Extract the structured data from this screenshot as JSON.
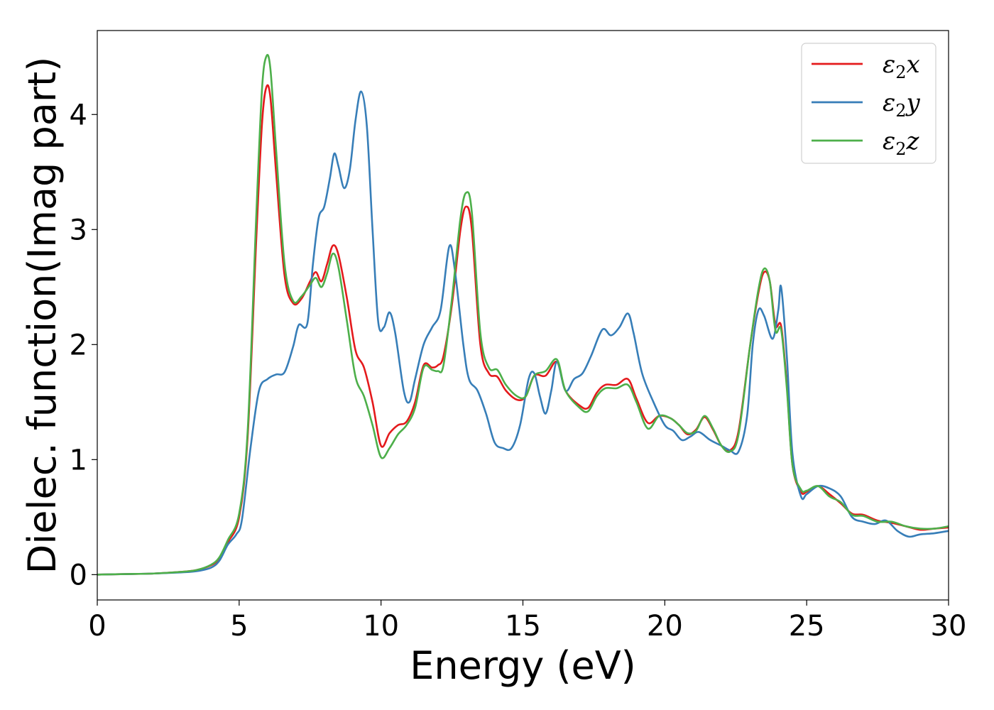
{
  "chart_data": {
    "type": "line",
    "xlabel": "Energy (eV)",
    "ylabel": "Dielec. function(Imag part)",
    "xlim": [
      0,
      30
    ],
    "ylim": [
      -0.22,
      4.73
    ],
    "xticks": [
      0,
      5,
      10,
      15,
      20,
      25,
      30
    ],
    "yticks": [
      0,
      1,
      2,
      3,
      4
    ],
    "grid": false,
    "legend_position": "top-right",
    "series": [
      {
        "name": "ε2x",
        "legend_base": "ε",
        "legend_sub": "2",
        "legend_var": "x",
        "color": "#e41a1c",
        "points": [
          [
            0,
            0
          ],
          [
            1,
            0.005
          ],
          [
            2,
            0.01
          ],
          [
            3,
            0.025
          ],
          [
            3.5,
            0.04
          ],
          [
            4,
            0.08
          ],
          [
            4.3,
            0.14
          ],
          [
            4.6,
            0.28
          ],
          [
            5,
            0.5
          ],
          [
            5.3,
            1.2
          ],
          [
            5.6,
            2.9
          ],
          [
            5.8,
            3.9
          ],
          [
            5.95,
            4.23
          ],
          [
            6.1,
            4.15
          ],
          [
            6.3,
            3.5
          ],
          [
            6.6,
            2.6
          ],
          [
            6.9,
            2.36
          ],
          [
            7.2,
            2.4
          ],
          [
            7.5,
            2.55
          ],
          [
            7.7,
            2.63
          ],
          [
            7.9,
            2.55
          ],
          [
            8.1,
            2.7
          ],
          [
            8.3,
            2.86
          ],
          [
            8.5,
            2.78
          ],
          [
            8.8,
            2.4
          ],
          [
            9.1,
            1.95
          ],
          [
            9.4,
            1.8
          ],
          [
            9.7,
            1.5
          ],
          [
            10.0,
            1.12
          ],
          [
            10.3,
            1.23
          ],
          [
            10.6,
            1.3
          ],
          [
            10.9,
            1.33
          ],
          [
            11.2,
            1.5
          ],
          [
            11.5,
            1.82
          ],
          [
            11.8,
            1.8
          ],
          [
            12.0,
            1.82
          ],
          [
            12.2,
            1.9
          ],
          [
            12.5,
            2.35
          ],
          [
            12.8,
            3.0
          ],
          [
            13.0,
            3.2
          ],
          [
            13.2,
            3.0
          ],
          [
            13.5,
            2.0
          ],
          [
            13.8,
            1.75
          ],
          [
            14.1,
            1.72
          ],
          [
            14.4,
            1.6
          ],
          [
            14.8,
            1.52
          ],
          [
            15.1,
            1.55
          ],
          [
            15.4,
            1.73
          ],
          [
            15.8,
            1.73
          ],
          [
            16.2,
            1.85
          ],
          [
            16.5,
            1.6
          ],
          [
            17.0,
            1.47
          ],
          [
            17.3,
            1.45
          ],
          [
            17.6,
            1.58
          ],
          [
            17.9,
            1.65
          ],
          [
            18.3,
            1.65
          ],
          [
            18.7,
            1.7
          ],
          [
            19.0,
            1.53
          ],
          [
            19.4,
            1.32
          ],
          [
            19.8,
            1.38
          ],
          [
            20.2,
            1.36
          ],
          [
            20.5,
            1.3
          ],
          [
            20.8,
            1.22
          ],
          [
            21.1,
            1.26
          ],
          [
            21.4,
            1.37
          ],
          [
            21.7,
            1.26
          ],
          [
            22.0,
            1.12
          ],
          [
            22.3,
            1.08
          ],
          [
            22.6,
            1.25
          ],
          [
            23.0,
            1.98
          ],
          [
            23.3,
            2.45
          ],
          [
            23.5,
            2.63
          ],
          [
            23.7,
            2.55
          ],
          [
            23.9,
            2.17
          ],
          [
            24.1,
            2.16
          ],
          [
            24.3,
            1.65
          ],
          [
            24.5,
            0.95
          ],
          [
            24.8,
            0.72
          ],
          [
            25.0,
            0.72
          ],
          [
            25.4,
            0.77
          ],
          [
            25.8,
            0.7
          ],
          [
            26.2,
            0.62
          ],
          [
            26.6,
            0.53
          ],
          [
            27.0,
            0.52
          ],
          [
            27.5,
            0.47
          ],
          [
            28.0,
            0.45
          ],
          [
            28.5,
            0.42
          ],
          [
            29.0,
            0.39
          ],
          [
            29.5,
            0.4
          ],
          [
            30.0,
            0.41
          ]
        ]
      },
      {
        "name": "ε2y",
        "legend_base": "ε",
        "legend_sub": "2",
        "legend_var": "y",
        "color": "#377eb8",
        "points": [
          [
            0,
            0
          ],
          [
            1,
            0.005
          ],
          [
            2,
            0.01
          ],
          [
            3,
            0.02
          ],
          [
            3.5,
            0.03
          ],
          [
            4,
            0.06
          ],
          [
            4.3,
            0.12
          ],
          [
            4.6,
            0.26
          ],
          [
            4.9,
            0.35
          ],
          [
            5.1,
            0.48
          ],
          [
            5.4,
            1.1
          ],
          [
            5.7,
            1.6
          ],
          [
            6.0,
            1.7
          ],
          [
            6.3,
            1.74
          ],
          [
            6.6,
            1.76
          ],
          [
            6.9,
            1.98
          ],
          [
            7.1,
            2.17
          ],
          [
            7.4,
            2.18
          ],
          [
            7.6,
            2.7
          ],
          [
            7.8,
            3.1
          ],
          [
            8.0,
            3.2
          ],
          [
            8.2,
            3.45
          ],
          [
            8.35,
            3.66
          ],
          [
            8.5,
            3.55
          ],
          [
            8.7,
            3.36
          ],
          [
            8.9,
            3.52
          ],
          [
            9.1,
            3.95
          ],
          [
            9.3,
            4.2
          ],
          [
            9.5,
            3.9
          ],
          [
            9.7,
            3.0
          ],
          [
            9.9,
            2.2
          ],
          [
            10.1,
            2.15
          ],
          [
            10.3,
            2.28
          ],
          [
            10.5,
            2.1
          ],
          [
            10.8,
            1.6
          ],
          [
            11.0,
            1.5
          ],
          [
            11.2,
            1.7
          ],
          [
            11.5,
            2.0
          ],
          [
            11.8,
            2.15
          ],
          [
            12.1,
            2.3
          ],
          [
            12.4,
            2.85
          ],
          [
            12.6,
            2.65
          ],
          [
            12.9,
            2.0
          ],
          [
            13.1,
            1.7
          ],
          [
            13.4,
            1.6
          ],
          [
            13.7,
            1.4
          ],
          [
            14.0,
            1.15
          ],
          [
            14.3,
            1.1
          ],
          [
            14.6,
            1.1
          ],
          [
            14.9,
            1.3
          ],
          [
            15.2,
            1.7
          ],
          [
            15.4,
            1.75
          ],
          [
            15.6,
            1.55
          ],
          [
            15.8,
            1.4
          ],
          [
            16.0,
            1.6
          ],
          [
            16.2,
            1.85
          ],
          [
            16.5,
            1.6
          ],
          [
            16.8,
            1.7
          ],
          [
            17.1,
            1.75
          ],
          [
            17.4,
            1.9
          ],
          [
            17.8,
            2.13
          ],
          [
            18.1,
            2.08
          ],
          [
            18.4,
            2.15
          ],
          [
            18.7,
            2.27
          ],
          [
            18.9,
            2.1
          ],
          [
            19.2,
            1.75
          ],
          [
            19.6,
            1.5
          ],
          [
            20.0,
            1.3
          ],
          [
            20.3,
            1.25
          ],
          [
            20.6,
            1.17
          ],
          [
            20.9,
            1.2
          ],
          [
            21.2,
            1.24
          ],
          [
            21.6,
            1.17
          ],
          [
            22.0,
            1.12
          ],
          [
            22.3,
            1.08
          ],
          [
            22.6,
            1.07
          ],
          [
            22.9,
            1.38
          ],
          [
            23.1,
            2.0
          ],
          [
            23.3,
            2.3
          ],
          [
            23.5,
            2.25
          ],
          [
            23.8,
            2.05
          ],
          [
            24.0,
            2.3
          ],
          [
            24.1,
            2.5
          ],
          [
            24.3,
            1.9
          ],
          [
            24.5,
            1.05
          ],
          [
            24.8,
            0.68
          ],
          [
            25.0,
            0.7
          ],
          [
            25.4,
            0.77
          ],
          [
            25.8,
            0.75
          ],
          [
            26.2,
            0.68
          ],
          [
            26.6,
            0.5
          ],
          [
            27.0,
            0.46
          ],
          [
            27.4,
            0.44
          ],
          [
            27.8,
            0.47
          ],
          [
            28.2,
            0.38
          ],
          [
            28.6,
            0.33
          ],
          [
            29.0,
            0.35
          ],
          [
            29.5,
            0.36
          ],
          [
            30.0,
            0.38
          ]
        ]
      },
      {
        "name": "ε2z",
        "legend_base": "ε",
        "legend_sub": "2",
        "legend_var": "z",
        "color": "#4daf4a",
        "points": [
          [
            0,
            0
          ],
          [
            1,
            0.005
          ],
          [
            2,
            0.01
          ],
          [
            3,
            0.025
          ],
          [
            3.5,
            0.04
          ],
          [
            4,
            0.085
          ],
          [
            4.3,
            0.15
          ],
          [
            4.6,
            0.3
          ],
          [
            5,
            0.53
          ],
          [
            5.3,
            1.25
          ],
          [
            5.6,
            3.1
          ],
          [
            5.8,
            4.2
          ],
          [
            5.95,
            4.5
          ],
          [
            6.1,
            4.4
          ],
          [
            6.3,
            3.7
          ],
          [
            6.6,
            2.7
          ],
          [
            6.9,
            2.38
          ],
          [
            7.2,
            2.42
          ],
          [
            7.5,
            2.52
          ],
          [
            7.7,
            2.58
          ],
          [
            7.9,
            2.5
          ],
          [
            8.1,
            2.62
          ],
          [
            8.3,
            2.79
          ],
          [
            8.5,
            2.67
          ],
          [
            8.8,
            2.2
          ],
          [
            9.1,
            1.72
          ],
          [
            9.4,
            1.55
          ],
          [
            9.7,
            1.3
          ],
          [
            10.0,
            1.02
          ],
          [
            10.3,
            1.1
          ],
          [
            10.6,
            1.22
          ],
          [
            10.9,
            1.3
          ],
          [
            11.2,
            1.45
          ],
          [
            11.5,
            1.8
          ],
          [
            11.8,
            1.78
          ],
          [
            12.0,
            1.77
          ],
          [
            12.2,
            1.82
          ],
          [
            12.5,
            2.4
          ],
          [
            12.8,
            3.1
          ],
          [
            13.0,
            3.32
          ],
          [
            13.2,
            3.15
          ],
          [
            13.5,
            2.1
          ],
          [
            13.8,
            1.8
          ],
          [
            14.1,
            1.78
          ],
          [
            14.4,
            1.65
          ],
          [
            14.8,
            1.55
          ],
          [
            15.1,
            1.55
          ],
          [
            15.4,
            1.73
          ],
          [
            15.8,
            1.77
          ],
          [
            16.2,
            1.87
          ],
          [
            16.5,
            1.6
          ],
          [
            17.0,
            1.45
          ],
          [
            17.3,
            1.42
          ],
          [
            17.6,
            1.55
          ],
          [
            17.9,
            1.62
          ],
          [
            18.3,
            1.62
          ],
          [
            18.7,
            1.65
          ],
          [
            19.0,
            1.5
          ],
          [
            19.4,
            1.27
          ],
          [
            19.8,
            1.38
          ],
          [
            20.2,
            1.36
          ],
          [
            20.5,
            1.3
          ],
          [
            20.8,
            1.23
          ],
          [
            21.1,
            1.25
          ],
          [
            21.4,
            1.38
          ],
          [
            21.7,
            1.27
          ],
          [
            22.0,
            1.12
          ],
          [
            22.3,
            1.07
          ],
          [
            22.6,
            1.22
          ],
          [
            23.0,
            1.98
          ],
          [
            23.3,
            2.48
          ],
          [
            23.5,
            2.66
          ],
          [
            23.7,
            2.55
          ],
          [
            23.9,
            2.12
          ],
          [
            24.1,
            2.13
          ],
          [
            24.3,
            1.62
          ],
          [
            24.5,
            0.95
          ],
          [
            24.8,
            0.74
          ],
          [
            25.0,
            0.73
          ],
          [
            25.4,
            0.77
          ],
          [
            25.8,
            0.68
          ],
          [
            26.2,
            0.63
          ],
          [
            26.6,
            0.52
          ],
          [
            27.0,
            0.51
          ],
          [
            27.5,
            0.46
          ],
          [
            28.0,
            0.46
          ],
          [
            28.5,
            0.42
          ],
          [
            29.0,
            0.4
          ],
          [
            29.5,
            0.4
          ],
          [
            30.0,
            0.42
          ]
        ]
      }
    ]
  }
}
